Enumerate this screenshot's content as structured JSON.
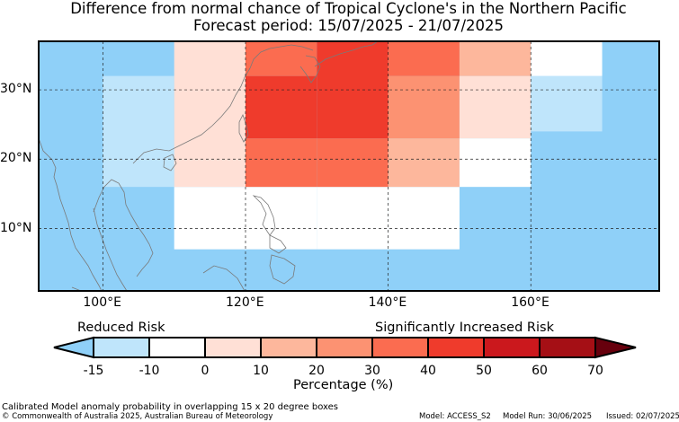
{
  "title_line1": "Difference from normal chance of Tropical Cyclone's in the Northern Pacific",
  "title_line2": "Forecast period: 15/07/2025 - 21/07/2025",
  "map": {
    "lon_range": [
      91,
      178
    ],
    "lat_range": [
      1,
      37
    ],
    "lon_ticks": [
      {
        "value": 100,
        "label": "100°E"
      },
      {
        "value": 120,
        "label": "120°E"
      },
      {
        "value": 140,
        "label": "140°E"
      },
      {
        "value": 160,
        "label": "160°E"
      }
    ],
    "lat_ticks": [
      {
        "value": 10,
        "label": "10°N"
      },
      {
        "value": 20,
        "label": "20°N"
      },
      {
        "value": 30,
        "label": "30°N"
      }
    ],
    "ocean_color": "#8fd0f8",
    "cells": [
      {
        "lon": [
          100,
          110
        ],
        "lat": [
          16,
          32
        ],
        "color": "#bfe5fb",
        "value": -10
      },
      {
        "lon": [
          110,
          120
        ],
        "lat": [
          7,
          16
        ],
        "color": "#ffffff",
        "value": 0
      },
      {
        "lon": [
          110,
          120
        ],
        "lat": [
          16,
          37
        ],
        "color": "#ffe0d6",
        "value": 5
      },
      {
        "lon": [
          120,
          130
        ],
        "lat": [
          7,
          16
        ],
        "color": "#ffffff",
        "value": 0
      },
      {
        "lon": [
          120,
          130
        ],
        "lat": [
          16,
          23
        ],
        "color": "#fb6c50",
        "value": 35
      },
      {
        "lon": [
          120,
          130
        ],
        "lat": [
          23,
          32
        ],
        "color": "#ef3b2c",
        "value": 45
      },
      {
        "lon": [
          120,
          130
        ],
        "lat": [
          32,
          37
        ],
        "color": "#fb6c50",
        "value": 35
      },
      {
        "lon": [
          130,
          140
        ],
        "lat": [
          7,
          16
        ],
        "color": "#ffffff",
        "value": 0
      },
      {
        "lon": [
          130,
          140
        ],
        "lat": [
          16,
          23
        ],
        "color": "#fb6c50",
        "value": 35
      },
      {
        "lon": [
          130,
          140
        ],
        "lat": [
          23,
          37
        ],
        "color": "#ef3b2c",
        "value": 45
      },
      {
        "lon": [
          140,
          150
        ],
        "lat": [
          7,
          16
        ],
        "color": "#ffffff",
        "value": 0
      },
      {
        "lon": [
          140,
          150
        ],
        "lat": [
          16,
          23
        ],
        "color": "#fdb79c",
        "value": 15
      },
      {
        "lon": [
          140,
          150
        ],
        "lat": [
          23,
          32
        ],
        "color": "#fc9272",
        "value": 25
      },
      {
        "lon": [
          140,
          150
        ],
        "lat": [
          32,
          37
        ],
        "color": "#fb6c50",
        "value": 35
      },
      {
        "lon": [
          150,
          160
        ],
        "lat": [
          16,
          23
        ],
        "color": "#ffffff",
        "value": 0
      },
      {
        "lon": [
          150,
          160
        ],
        "lat": [
          23,
          32
        ],
        "color": "#ffe0d6",
        "value": 5
      },
      {
        "lon": [
          150,
          160
        ],
        "lat": [
          32,
          37
        ],
        "color": "#fdb79c",
        "value": 15
      },
      {
        "lon": [
          160,
          170
        ],
        "lat": [
          24,
          32
        ],
        "color": "#bfe5fb",
        "value": -10
      },
      {
        "lon": [
          160,
          170
        ],
        "lat": [
          32,
          37
        ],
        "color": "#ffffff",
        "value": 0
      }
    ]
  },
  "colorbar": {
    "left_label": "Reduced Risk",
    "right_label": "Significantly Increased Risk",
    "xlabel": "Percentage (%)",
    "bins": [
      {
        "from": -15,
        "to": -10,
        "color": "#bfe5fb"
      },
      {
        "from": -10,
        "to": 0,
        "color": "#ffffff"
      },
      {
        "from": 0,
        "to": 10,
        "color": "#ffe0d6"
      },
      {
        "from": 10,
        "to": 20,
        "color": "#fdb79c"
      },
      {
        "from": 20,
        "to": 30,
        "color": "#fc9272"
      },
      {
        "from": 30,
        "to": 40,
        "color": "#fb6c50"
      },
      {
        "from": 40,
        "to": 50,
        "color": "#ef3b2c"
      },
      {
        "from": 50,
        "to": 60,
        "color": "#cb181d"
      },
      {
        "from": 60,
        "to": 70,
        "color": "#a50f15"
      }
    ],
    "under_color": "#8fd0f8",
    "over_color": "#67000d",
    "ticks": [
      "-15",
      "-10",
      "0",
      "10",
      "20",
      "30",
      "40",
      "50",
      "60",
      "70"
    ]
  },
  "footer": {
    "line1": "Calibrated Model anomaly probability in overlapping 15 x 20 degree boxes",
    "copyright": "© Commonwealth of Australia 2025, Australian Bureau of Meteorology",
    "model": "Model: ACCESS_S2",
    "model_run": "Model Run: 30/06/2025",
    "issued": "Issued: 02/07/2025"
  }
}
